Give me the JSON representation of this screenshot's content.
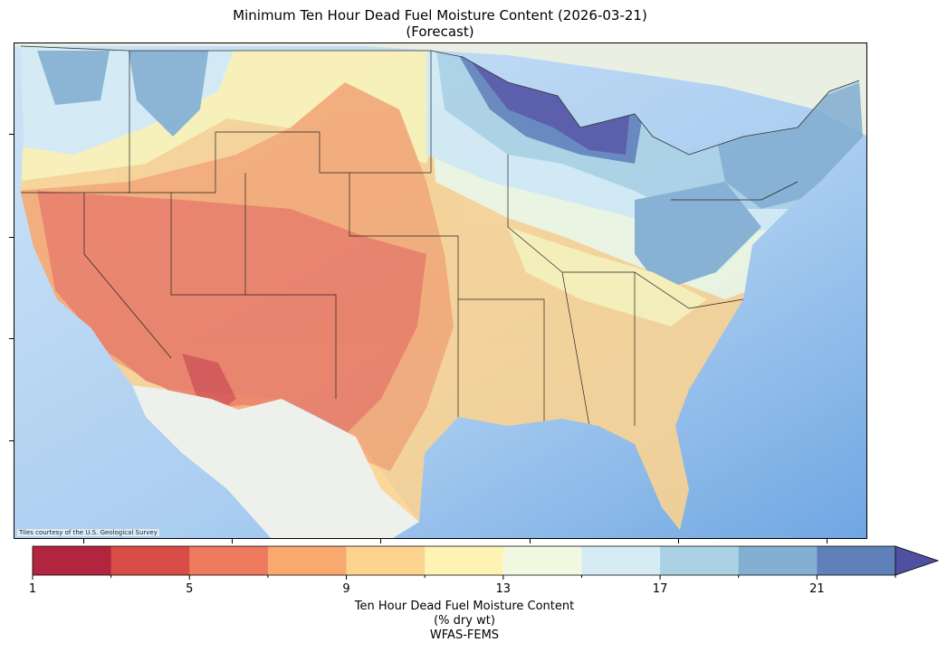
{
  "title": {
    "line1": "Minimum Ten Hour Dead Fuel Moisture Content (2026-03-21)",
    "line2": "(Forecast)"
  },
  "map": {
    "attribution": "Tiles courtesy of the U.S. Geological Survey",
    "ocean_color": "#a9cdf0",
    "land_color": "#eef1ea"
  },
  "colorbar": {
    "bounds": [
      1,
      3,
      5,
      7,
      9,
      11,
      13,
      15,
      17,
      19,
      21,
      23
    ],
    "colors": [
      "#b2253f",
      "#d84d47",
      "#ef7a5d",
      "#f9a86e",
      "#fdd390",
      "#fef3b3",
      "#f2f9e0",
      "#d5ecf4",
      "#abd2e4",
      "#83afd1",
      "#5f80b9"
    ],
    "extend_color": "#5050a2",
    "tick_labels": [
      "1",
      "5",
      "9",
      "13",
      "17",
      "21"
    ],
    "label_line1": "Ten Hour Dead Fuel Moisture Content",
    "label_line2": "(% dry wt)",
    "label_line3": "WFAS-FEMS"
  }
}
